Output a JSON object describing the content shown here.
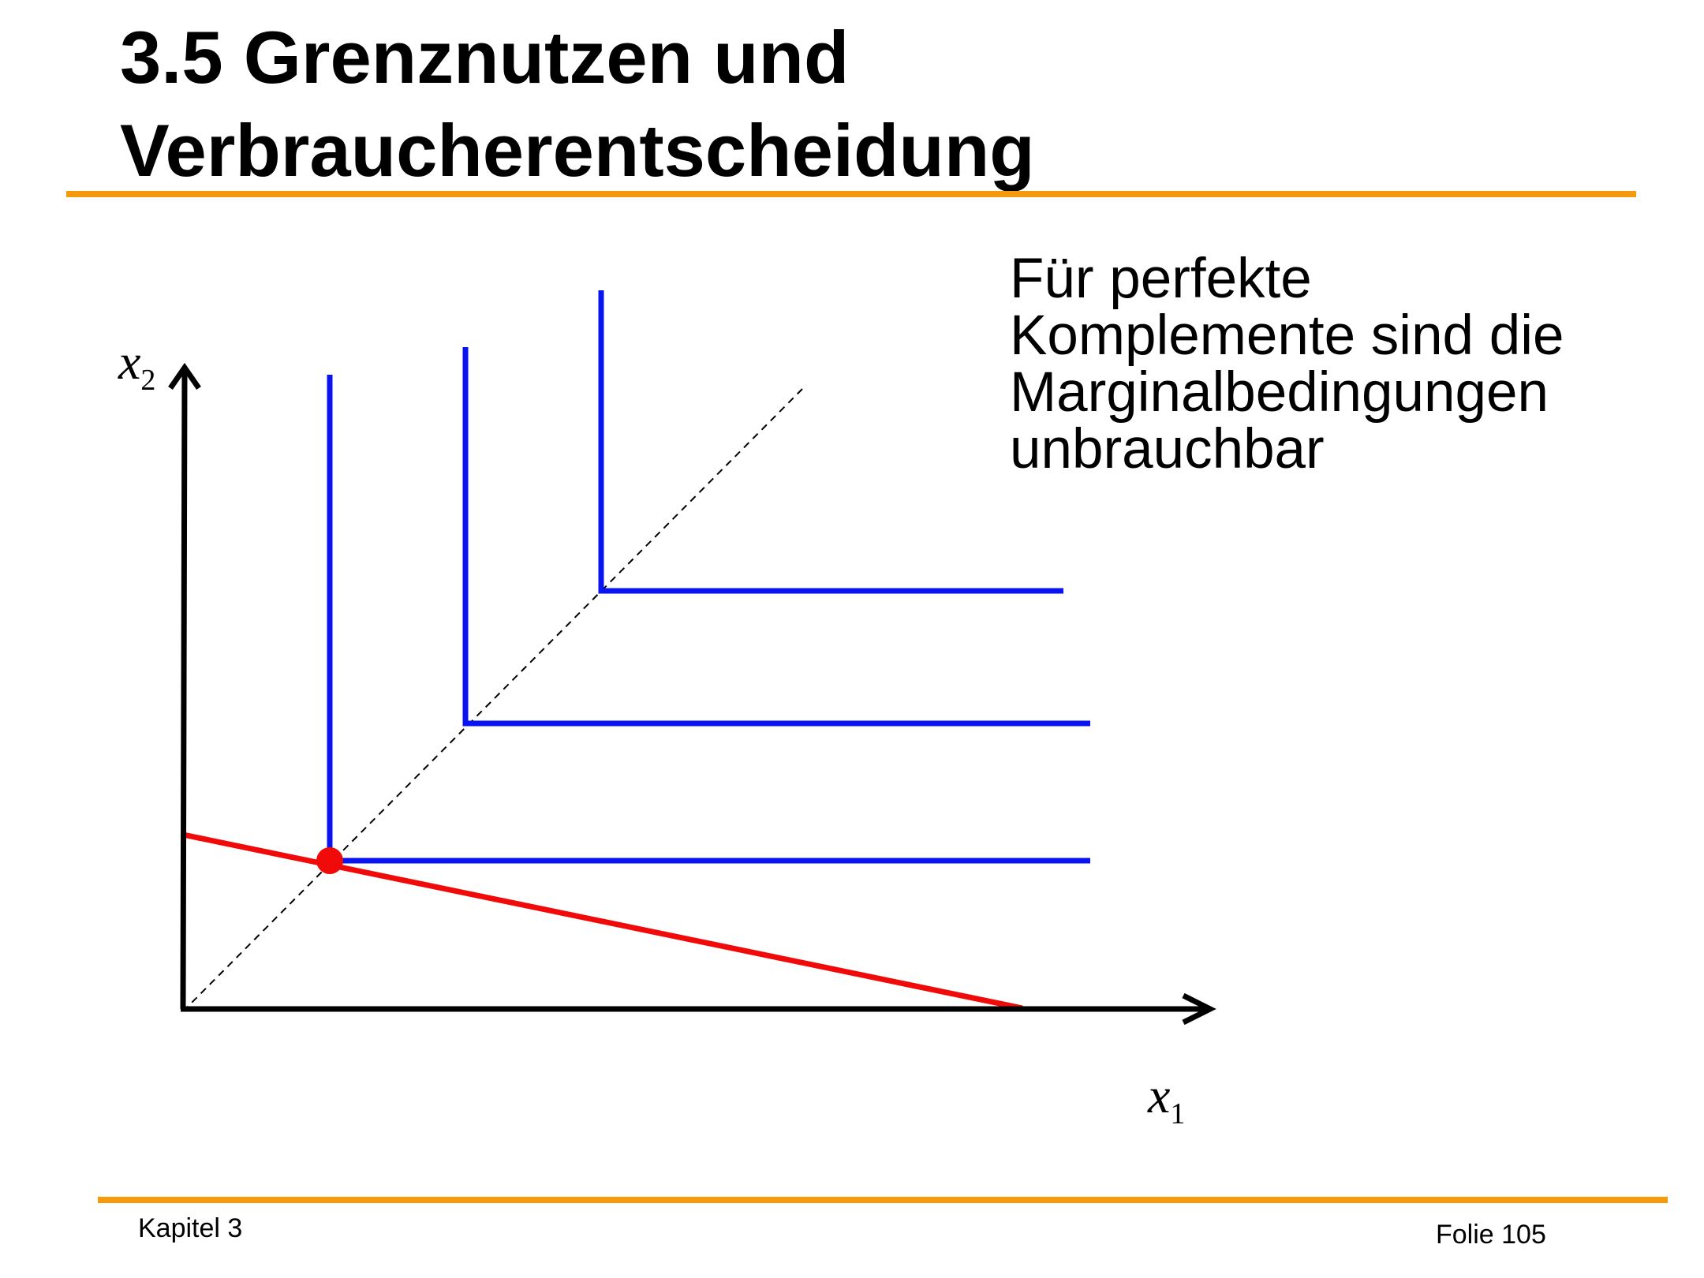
{
  "slide": {
    "title_line1": "3.5 Grenznutzen und",
    "title_line2": "Verbraucherentscheidung",
    "description_lines": [
      "Für perfekte",
      "Komplemente sind die",
      "Marginalbedingungen",
      "unbrauchbar"
    ],
    "footer_left": "Kapitel 3",
    "footer_right": "Folie 105"
  },
  "diagram": {
    "y_axis_label": "x",
    "y_axis_subscript": "2",
    "x_axis_label": "x",
    "x_axis_subscript": "1"
  },
  "colors": {
    "rule": "#f59a0c",
    "indifference": "#0a14f0",
    "budget": "#f00a0a",
    "axis": "#000000"
  }
}
